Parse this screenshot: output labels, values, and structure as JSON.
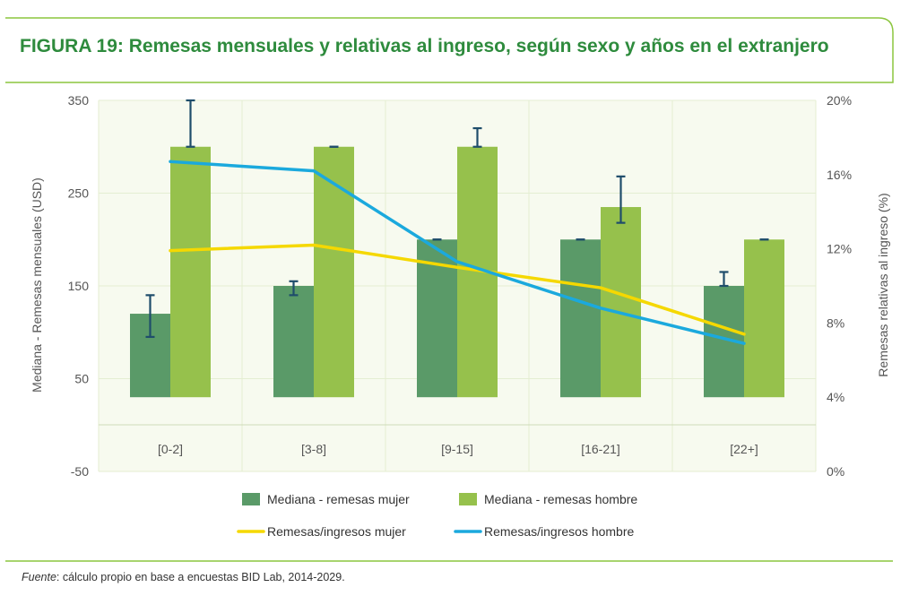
{
  "title": "FIGURA 19: Remesas mensuales y relativas al ingreso, según sexo y años en el extranjero",
  "source": {
    "label": "Fuente",
    "text": ": cálculo propio en base a encuestas BID Lab, 2014-2029."
  },
  "colors": {
    "title": "#2e8b3d",
    "frame": "#8cc63f",
    "plot_bg": "#f7faef",
    "grid": "#e4eed2",
    "bar_mujer": "#5a9a68",
    "bar_hombre": "#96c14c",
    "line_mujer": "#f5d800",
    "line_hombre": "#1ba9dd",
    "error_bar": "#1f4d6b",
    "text": "#555555"
  },
  "chart_data": {
    "type": "bar",
    "title": "FIGURA 19: Remesas mensuales y relativas al ingreso, según sexo y años en el extranjero",
    "categories": [
      "[0-2]",
      "[3-8]",
      "[9-15]",
      "[16-21]",
      "[22+]"
    ],
    "ylabel": "Mediana - Remesas mensuales (USD)",
    "y2label": "Remesas relativas al ingreso (%)",
    "ylim": [
      -50,
      350
    ],
    "yticks": [
      "350",
      "250",
      "150",
      "50",
      "-50"
    ],
    "y2lim": [
      0,
      20
    ],
    "y2ticks": [
      "20%",
      "16%",
      "12%",
      "8%",
      "4%",
      "0%"
    ],
    "grid": true,
    "legend_position": "bottom",
    "series": [
      {
        "name": "Mediana - remesas mujer",
        "kind": "bar",
        "values": [
          120,
          150,
          200,
          200,
          150
        ],
        "error_low": [
          95,
          140,
          200,
          200,
          150
        ],
        "error_high": [
          140,
          155,
          200,
          200,
          165
        ]
      },
      {
        "name": "Mediana - remesas hombre",
        "kind": "bar",
        "values": [
          300,
          300,
          300,
          235,
          200
        ],
        "error_low": [
          300,
          300,
          300,
          218,
          200
        ],
        "error_high": [
          350,
          300,
          320,
          268,
          200
        ]
      },
      {
        "name": "Remesas/ingresos mujer",
        "kind": "line",
        "axis": "right",
        "values": [
          11.9,
          12.2,
          11.0,
          9.9,
          7.4
        ]
      },
      {
        "name": "Remesas/ingresos hombre",
        "kind": "line",
        "axis": "right",
        "values": [
          16.7,
          16.2,
          11.3,
          8.8,
          6.9
        ]
      }
    ]
  }
}
